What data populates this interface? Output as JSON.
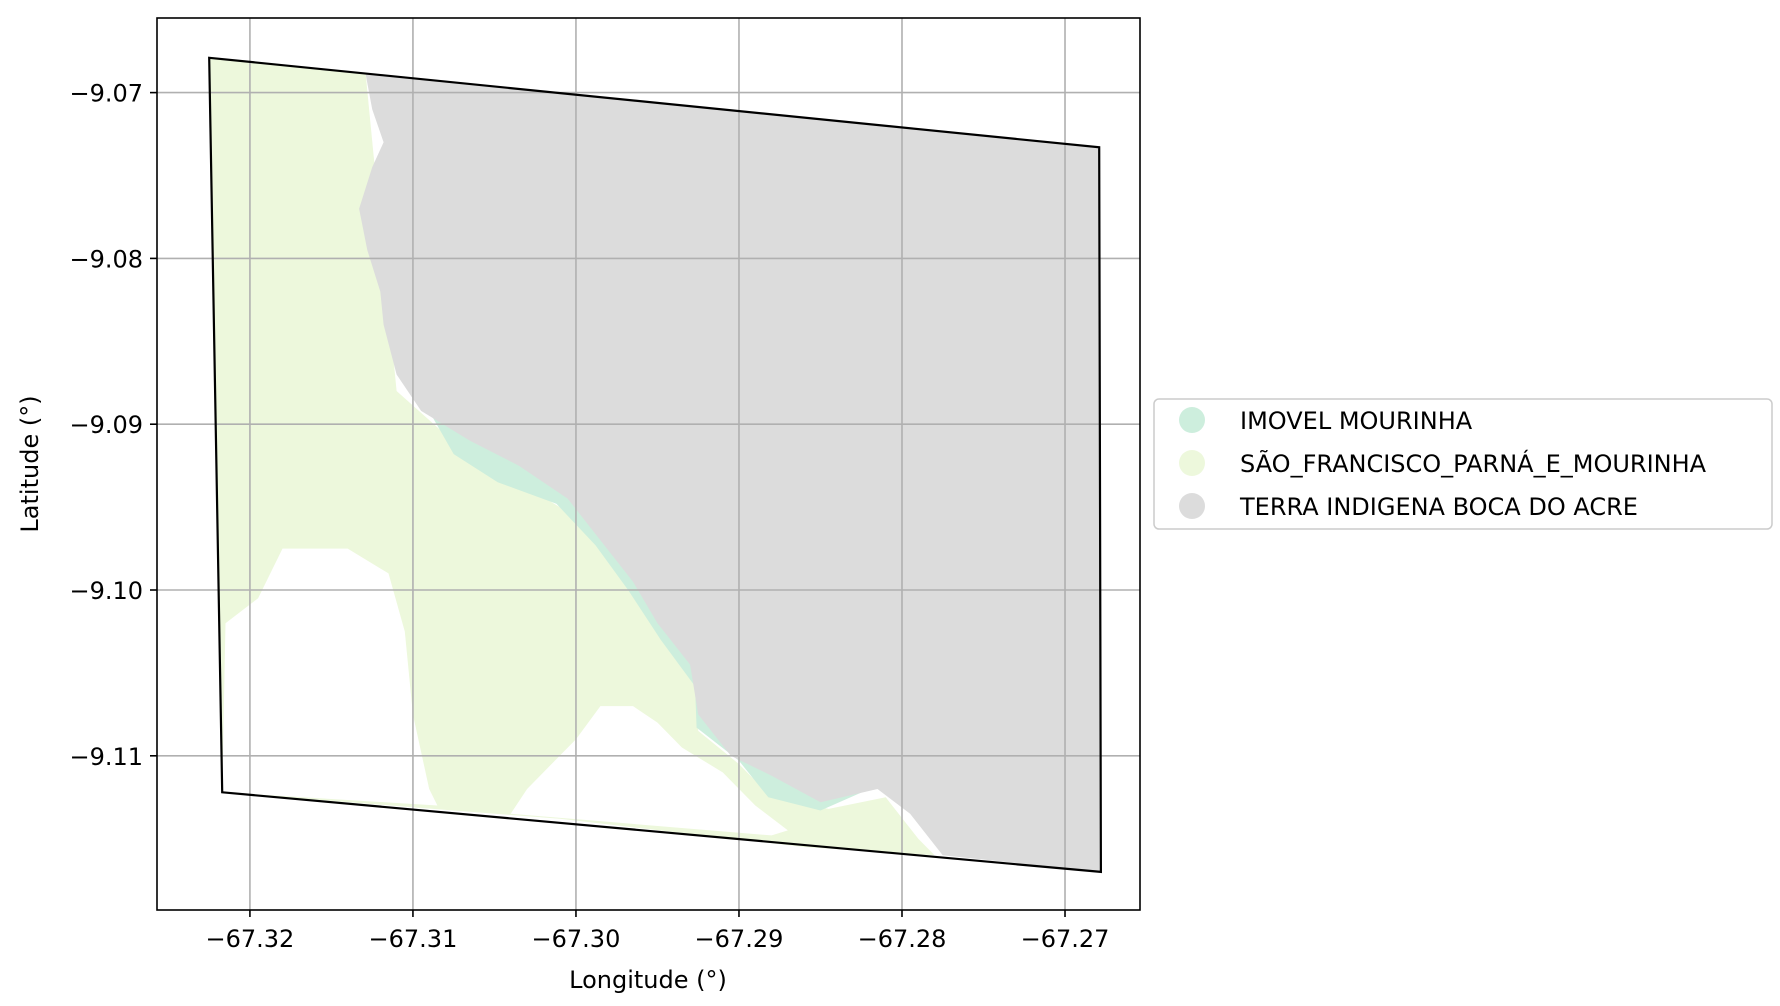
{
  "chart_data": {
    "type": "map",
    "xlabel": "Longitude (°)",
    "ylabel": "Latitude (°)",
    "xlim": [
      -67.3257,
      -67.2654
    ],
    "ylim": [
      -9.1193,
      -9.0655
    ],
    "xticks": [
      -67.32,
      -67.31,
      -67.3,
      -67.29,
      -67.28,
      -67.27
    ],
    "yticks": [
      -9.07,
      -9.08,
      -9.09,
      -9.1,
      -9.11
    ],
    "xtick_labels": [
      "−67.32",
      "−67.31",
      "−67.30",
      "−67.29",
      "−67.28",
      "−67.27"
    ],
    "ytick_labels": [
      "−9.07",
      "−9.08",
      "−9.09",
      "−9.10",
      "−9.11"
    ],
    "grid": true,
    "legend_position": "right",
    "boundary": {
      "color": "#000000",
      "coords": [
        [
          -67.3225,
          -9.0679
        ],
        [
          -67.2679,
          -9.0733
        ],
        [
          -67.2678,
          -9.117
        ],
        [
          -67.3217,
          -9.1122
        ]
      ]
    },
    "layers": [
      {
        "name": "SÃO_FRANCISCO_PARNÁ_E_MOURINHA",
        "color": "#edf8dc",
        "coords": [
          [
            -67.3225,
            -9.0679
          ],
          [
            -67.3129,
            -9.0689
          ],
          [
            -67.311,
            -9.088
          ],
          [
            -67.307,
            -9.0915
          ],
          [
            -67.304,
            -9.0932
          ],
          [
            -67.301,
            -9.095
          ],
          [
            -67.2985,
            -9.0975
          ],
          [
            -67.297,
            -9.0995
          ],
          [
            -67.2945,
            -9.103
          ],
          [
            -67.2925,
            -9.106
          ],
          [
            -67.2925,
            -9.1085
          ],
          [
            -67.29,
            -9.1105
          ],
          [
            -67.288,
            -9.1125
          ],
          [
            -67.2845,
            -9.1132
          ],
          [
            -67.281,
            -9.1125
          ],
          [
            -67.279,
            -9.115
          ],
          [
            -67.278,
            -9.116
          ],
          [
            -67.286,
            -9.1155
          ],
          [
            -67.301,
            -9.1138
          ],
          [
            -67.3217,
            -9.1122
          ]
        ]
      },
      {
        "name": "IMOVEL MOURINHA",
        "color": "#cdeedd",
        "coords": [
          [
            -67.31,
            -9.0875
          ],
          [
            -67.307,
            -9.09
          ],
          [
            -67.303,
            -9.092
          ],
          [
            -67.3,
            -9.0945
          ],
          [
            -67.297,
            -9.0975
          ],
          [
            -67.295,
            -9.1
          ],
          [
            -67.293,
            -9.104
          ],
          [
            -67.292,
            -9.108
          ],
          [
            -67.288,
            -9.111
          ],
          [
            -67.285,
            -9.1125
          ],
          [
            -67.282,
            -9.112
          ],
          [
            -67.285,
            -9.1133
          ],
          [
            -67.2882,
            -9.1125
          ],
          [
            -67.29,
            -9.1103
          ],
          [
            -67.2926,
            -9.1083
          ],
          [
            -67.2927,
            -9.1058
          ],
          [
            -67.2948,
            -9.103
          ],
          [
            -67.2968,
            -9.1
          ],
          [
            -67.2988,
            -9.0973
          ],
          [
            -67.3012,
            -9.0948
          ],
          [
            -67.3048,
            -9.0935
          ],
          [
            -67.3075,
            -9.0918
          ]
        ]
      },
      {
        "name": "TERRA INDIGENA BOCA DO ACRE",
        "color": "#dcdcdc",
        "coords": [
          [
            -67.3129,
            -9.0689
          ],
          [
            -67.2679,
            -9.0733
          ],
          [
            -67.2678,
            -9.117
          ],
          [
            -67.2775,
            -9.116
          ],
          [
            -67.2795,
            -9.1135
          ],
          [
            -67.2815,
            -9.112
          ],
          [
            -67.285,
            -9.1128
          ],
          [
            -67.288,
            -9.1112
          ],
          [
            -67.2905,
            -9.11
          ],
          [
            -67.2925,
            -9.1075
          ],
          [
            -67.293,
            -9.1045
          ],
          [
            -67.295,
            -9.102
          ],
          [
            -67.2965,
            -9.0995
          ],
          [
            -67.2985,
            -9.097
          ],
          [
            -67.3005,
            -9.0945
          ],
          [
            -67.3035,
            -9.0925
          ],
          [
            -67.3065,
            -9.091
          ],
          [
            -67.3095,
            -9.0892
          ],
          [
            -67.311,
            -9.087
          ],
          [
            -67.3118,
            -9.084
          ],
          [
            -67.312,
            -9.082
          ],
          [
            -67.3128,
            -9.0795
          ],
          [
            -67.3133,
            -9.077
          ],
          [
            -67.3125,
            -9.0745
          ],
          [
            -67.3118,
            -9.073
          ],
          [
            -67.3125,
            -9.071
          ]
        ]
      }
    ],
    "white_gaps": [
      {
        "coords": [
          [
            -67.3217,
            -9.1122
          ],
          [
            -67.3215,
            -9.102
          ],
          [
            -67.3195,
            -9.1005
          ],
          [
            -67.318,
            -9.0975
          ],
          [
            -67.314,
            -9.0975
          ],
          [
            -67.3115,
            -9.099
          ],
          [
            -67.3105,
            -9.1025
          ],
          [
            -67.31,
            -9.1075
          ],
          [
            -67.309,
            -9.112
          ],
          [
            -67.3085,
            -9.113
          ]
        ]
      },
      {
        "coords": [
          [
            -67.304,
            -9.1135
          ],
          [
            -67.303,
            -9.112
          ],
          [
            -67.3015,
            -9.1105
          ],
          [
            -67.3,
            -9.109
          ],
          [
            -67.2985,
            -9.107
          ],
          [
            -67.2965,
            -9.107
          ],
          [
            -67.295,
            -9.108
          ],
          [
            -67.2935,
            -9.1095
          ],
          [
            -67.291,
            -9.111
          ],
          [
            -67.289,
            -9.113
          ],
          [
            -67.287,
            -9.1145
          ],
          [
            -67.288,
            -9.1148
          ]
        ]
      }
    ],
    "legend": [
      {
        "label": "IMOVEL MOURINHA",
        "color": "#cdeedd"
      },
      {
        "label": "SÃO_FRANCISCO_PARNÁ_E_MOURINHA",
        "color": "#edf8dc"
      },
      {
        "label": "TERRA INDIGENA BOCA DO ACRE",
        "color": "#dcdcdc"
      }
    ]
  }
}
